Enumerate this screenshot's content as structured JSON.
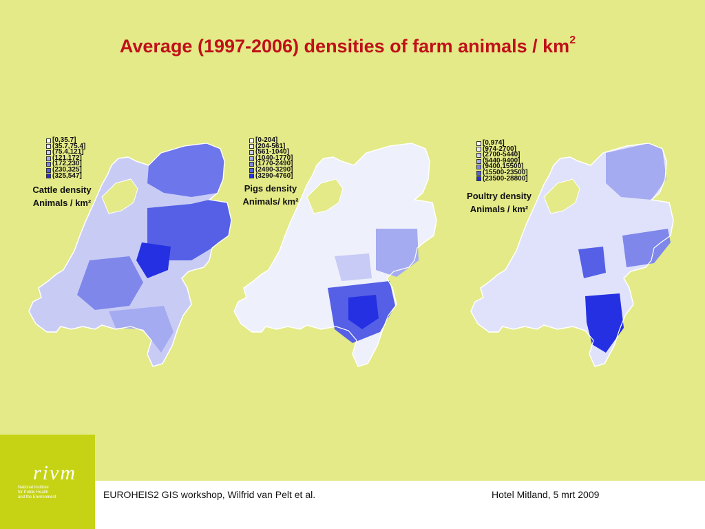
{
  "slide": {
    "title_main": "Average (1997-2006) densities of farm animals / km",
    "title_sup": "2",
    "footer_left": "EUROHEIS2 GIS workshop, Wilfrid van Pelt et al.",
    "footer_right": "Hotel Mitland, 5 mrt 2009",
    "logo_text": "rivm",
    "institute_lines": [
      "National Institute",
      "for Public Health",
      "and the Environment"
    ]
  },
  "maps": [
    {
      "id": "cattle",
      "label_line1": "Cattle density",
      "label_line2": "Animals / km²",
      "legend": [
        "[0,35.7]",
        "(35.7,75.4]",
        "(75.4,121]",
        "(121,172]",
        "(172,230]",
        "(230,325]",
        "(325,547]"
      ],
      "legend_colors": [
        "#ffffff",
        "#e6e8fb",
        "#c7cbf6",
        "#a4abf1",
        "#7f87eb",
        "#5560e6",
        "#2530e2"
      ]
    },
    {
      "id": "pigs",
      "label_line1": "Pigs density",
      "label_line2": "Animals/ km²",
      "legend": [
        "[0-204]",
        "(204-561]",
        "(561-1040]",
        "(1040-1770]",
        "(1770-2490]",
        "(2490-3290]",
        "(3290-4760]"
      ],
      "legend_colors": [
        "#ffffff",
        "#e6e8fb",
        "#c7cbf6",
        "#a4abf1",
        "#7f87eb",
        "#5560e6",
        "#2530e2"
      ]
    },
    {
      "id": "poultry",
      "label_line1": "Poultry density",
      "label_line2": "Animals / km²",
      "legend": [
        "[0,974]",
        "(974-2700]",
        "(2700-5440]",
        "(5440-9400]",
        "(9400,15500]",
        "(15500-23500]",
        "(23500-28800]"
      ],
      "legend_colors": [
        "#ffffff",
        "#e6e8fb",
        "#c7cbf6",
        "#a4abf1",
        "#7f87eb",
        "#5560e6",
        "#2530e2"
      ]
    }
  ]
}
